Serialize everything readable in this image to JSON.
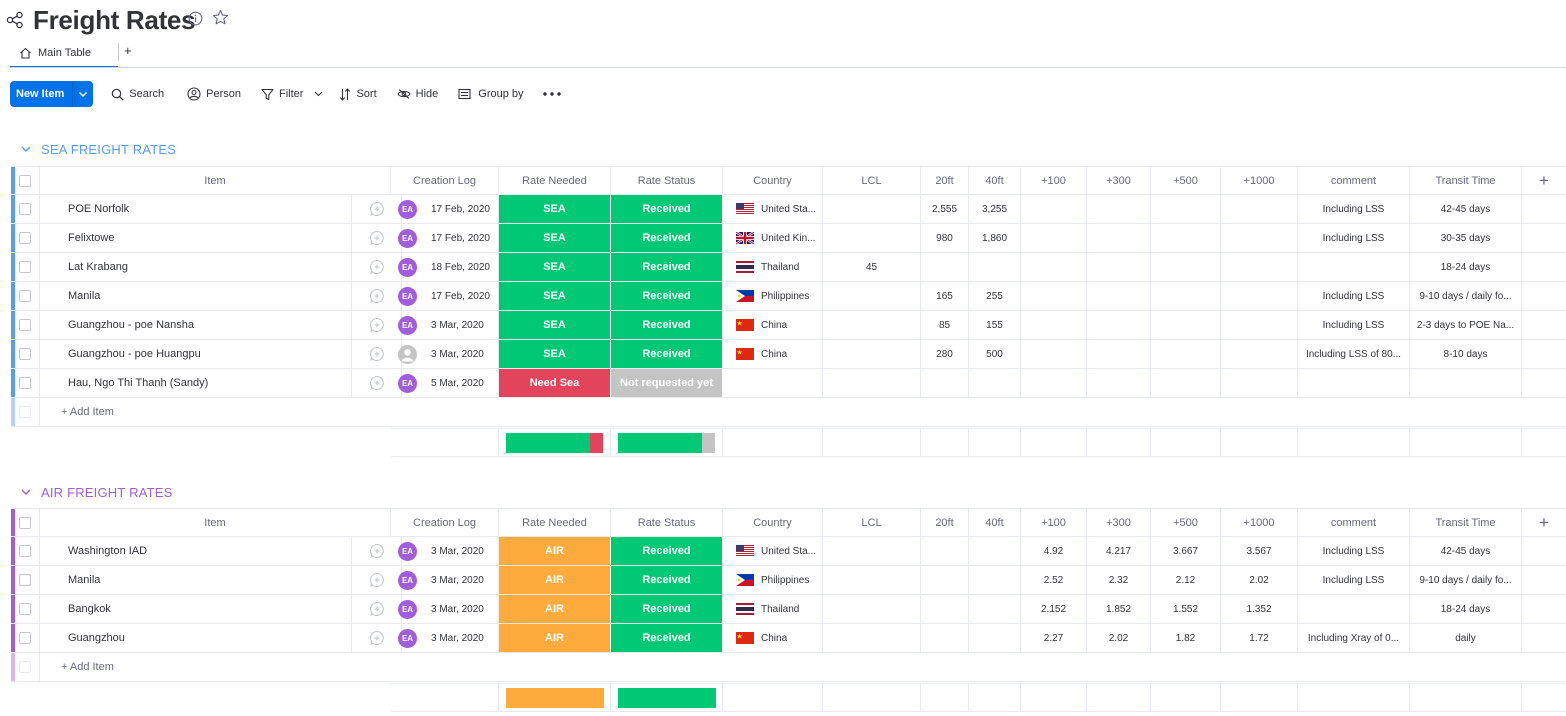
{
  "board": {
    "title": "Freight Rates",
    "tab_label": "Main Table",
    "tab_add": "+"
  },
  "toolbar": {
    "new_item": "New Item",
    "search": "Search",
    "person": "Person",
    "filter": "Filter",
    "sort": "Sort",
    "hide": "Hide",
    "group_by": "Group by"
  },
  "columns": [
    "Item",
    "Creation Log",
    "Rate Needed",
    "Rate Status",
    "Country",
    "LCL",
    "20ft",
    "40ft",
    "+100",
    "+300",
    "+500",
    "+1000",
    "comment",
    "Transit Time",
    "+"
  ],
  "colors": {
    "sea_group": "#579bfc",
    "air_group": "#a25ddc",
    "green": "#00c875",
    "red": "#e2445c",
    "orange": "#fdab3d",
    "gray": "#c4c4c4",
    "primary": "#0073ea"
  },
  "groups": [
    {
      "title": "SEA FREIGHT RATES",
      "color": "#579bfc",
      "add_item": "+ Add Item",
      "summary": {
        "rate_needed": [
          {
            "color": "#00c875",
            "fraction": 0.86
          },
          {
            "color": "#e2445c",
            "fraction": 0.14
          }
        ],
        "rate_status": [
          {
            "color": "#00c875",
            "fraction": 0.86
          },
          {
            "color": "#c4c4c4",
            "fraction": 0.14
          }
        ]
      },
      "rows": [
        {
          "item": "POE Norfolk",
          "avatar": "EA",
          "date": "17 Feb, 2020",
          "rate_needed": "SEA",
          "rate_needed_color": "#00c875",
          "rate_status": "Received",
          "rate_status_color": "#00c875",
          "country": "United Sta...",
          "flag": "us",
          "lcl": "",
          "ft20": "2,555",
          "ft40": "3,255",
          "p100": "",
          "p300": "",
          "p500": "",
          "p1000": "",
          "comment": "Including LSS",
          "transit": "42-45 days"
        },
        {
          "item": "Felixtowe",
          "avatar": "EA",
          "date": "17 Feb, 2020",
          "rate_needed": "SEA",
          "rate_needed_color": "#00c875",
          "rate_status": "Received",
          "rate_status_color": "#00c875",
          "country": "United Kin...",
          "flag": "uk",
          "lcl": "",
          "ft20": "980",
          "ft40": "1,860",
          "p100": "",
          "p300": "",
          "p500": "",
          "p1000": "",
          "comment": "Including LSS",
          "transit": "30-35 days"
        },
        {
          "item": "Lat Krabang",
          "avatar": "EA",
          "date": "18 Feb, 2020",
          "rate_needed": "SEA",
          "rate_needed_color": "#00c875",
          "rate_status": "Received",
          "rate_status_color": "#00c875",
          "country": "Thailand",
          "flag": "th",
          "lcl": "45",
          "ft20": "",
          "ft40": "",
          "p100": "",
          "p300": "",
          "p500": "",
          "p1000": "",
          "comment": "",
          "transit": "18-24 days"
        },
        {
          "item": "Manila",
          "avatar": "EA",
          "date": "17 Feb, 2020",
          "rate_needed": "SEA",
          "rate_needed_color": "#00c875",
          "rate_status": "Received",
          "rate_status_color": "#00c875",
          "country": "Philippines",
          "flag": "ph",
          "lcl": "",
          "ft20": "165",
          "ft40": "255",
          "p100": "",
          "p300": "",
          "p500": "",
          "p1000": "",
          "comment": "Including LSS",
          "transit": "9-10 days / daily fo..."
        },
        {
          "item": "Guangzhou - poe Nansha",
          "avatar": "EA",
          "date": "3 Mar, 2020",
          "rate_needed": "SEA",
          "rate_needed_color": "#00c875",
          "rate_status": "Received",
          "rate_status_color": "#00c875",
          "country": "China",
          "flag": "cn",
          "lcl": "",
          "ft20": "85",
          "ft40": "155",
          "p100": "",
          "p300": "",
          "p500": "",
          "p1000": "",
          "comment": "Including LSS",
          "transit": "2-3 days to POE Na..."
        },
        {
          "item": "Guangzhou - poe Huangpu",
          "avatar": "",
          "date": "3 Mar, 2020",
          "rate_needed": "SEA",
          "rate_needed_color": "#00c875",
          "rate_status": "Received",
          "rate_status_color": "#00c875",
          "country": "China",
          "flag": "cn",
          "lcl": "",
          "ft20": "280",
          "ft40": "500",
          "p100": "",
          "p300": "",
          "p500": "",
          "p1000": "",
          "comment": "Including LSS of 80...",
          "transit": "8-10 days"
        },
        {
          "item": "Hau, Ngo Thi Thanh (Sandy)",
          "avatar": "EA",
          "date": "5 Mar, 2020",
          "rate_needed": "Need Sea",
          "rate_needed_color": "#e2445c",
          "rate_status": "Not requested yet",
          "rate_status_color": "#c4c4c4",
          "country": "",
          "flag": "",
          "lcl": "",
          "ft20": "",
          "ft40": "",
          "p100": "",
          "p300": "",
          "p500": "",
          "p1000": "",
          "comment": "",
          "transit": ""
        }
      ]
    },
    {
      "title": "AIR FREIGHT RATES",
      "color": "#a25ddc",
      "add_item": "+ Add Item",
      "summary": {
        "rate_needed": [
          {
            "color": "#fdab3d",
            "fraction": 1.0
          }
        ],
        "rate_status": [
          {
            "color": "#00c875",
            "fraction": 1.0
          }
        ]
      },
      "rows": [
        {
          "item": "Washington IAD",
          "avatar": "EA",
          "date": "3 Mar, 2020",
          "rate_needed": "AIR",
          "rate_needed_color": "#fdab3d",
          "rate_status": "Received",
          "rate_status_color": "#00c875",
          "country": "United Sta...",
          "flag": "us",
          "lcl": "",
          "ft20": "",
          "ft40": "",
          "p100": "4.92",
          "p300": "4.217",
          "p500": "3.667",
          "p1000": "3.567",
          "comment": "Including LSS",
          "transit": "42-45 days"
        },
        {
          "item": "Manila",
          "avatar": "EA",
          "date": "3 Mar, 2020",
          "rate_needed": "AIR",
          "rate_needed_color": "#fdab3d",
          "rate_status": "Received",
          "rate_status_color": "#00c875",
          "country": "Philippines",
          "flag": "ph",
          "lcl": "",
          "ft20": "",
          "ft40": "",
          "p100": "2.52",
          "p300": "2.32",
          "p500": "2.12",
          "p1000": "2.02",
          "comment": "Including LSS",
          "transit": "9-10 days / daily fo..."
        },
        {
          "item": "Bangkok",
          "avatar": "EA",
          "date": "3 Mar, 2020",
          "rate_needed": "AIR",
          "rate_needed_color": "#fdab3d",
          "rate_status": "Received",
          "rate_status_color": "#00c875",
          "country": "Thailand",
          "flag": "th",
          "lcl": "",
          "ft20": "",
          "ft40": "",
          "p100": "2.152",
          "p300": "1.852",
          "p500": "1.552",
          "p1000": "1.352",
          "comment": "",
          "transit": "18-24 days"
        },
        {
          "item": "Guangzhou",
          "avatar": "EA",
          "date": "3 Mar, 2020",
          "rate_needed": "AIR",
          "rate_needed_color": "#fdab3d",
          "rate_status": "Received",
          "rate_status_color": "#00c875",
          "country": "China",
          "flag": "cn",
          "lcl": "",
          "ft20": "",
          "ft40": "",
          "p100": "2.27",
          "p300": "2.02",
          "p500": "1.82",
          "p1000": "1.72",
          "comment": "Including Xray of 0...",
          "transit": "daily"
        }
      ]
    }
  ]
}
